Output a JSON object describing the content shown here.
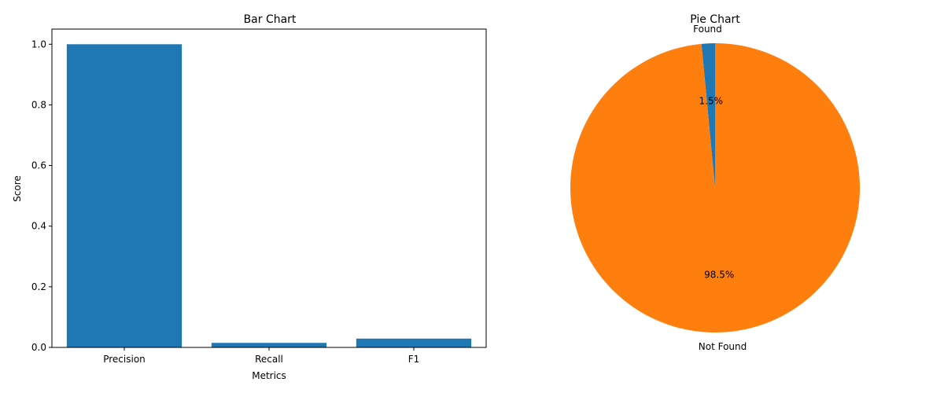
{
  "chart_data": [
    {
      "type": "bar",
      "title": "Bar Chart",
      "xlabel": "Metrics",
      "ylabel": "Score",
      "categories": [
        "Precision",
        "Recall",
        "F1"
      ],
      "values": [
        1.0,
        0.015,
        0.029
      ],
      "ylim": [
        0,
        1.05
      ],
      "yticks": [
        "0.0",
        "0.2",
        "0.4",
        "0.6",
        "0.8",
        "1.0"
      ],
      "ytick_values": [
        0,
        0.2,
        0.4,
        0.6,
        0.8,
        1.0
      ],
      "grid": false,
      "color": "#1f77b4"
    },
    {
      "type": "pie",
      "title": "Pie Chart",
      "labels": [
        "Found",
        "Not Found"
      ],
      "values": [
        1.5,
        98.5
      ],
      "pct_labels": [
        "1.5%",
        "98.5%"
      ],
      "colors": [
        "#1f77b4",
        "#ff7f0e"
      ],
      "start_angle_deg": 90
    }
  ]
}
